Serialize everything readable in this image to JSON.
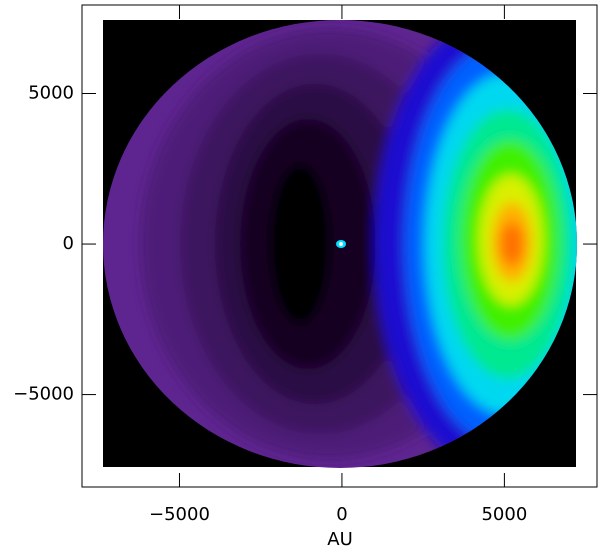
{
  "chart_data": {
    "type": "contour",
    "xlabel": "AU",
    "xlim": [
      -8000,
      7850
    ],
    "ylim": [
      -8070,
      7940
    ],
    "xticks": [
      {
        "value": -5000,
        "label": "−5000"
      },
      0,
      5000
    ],
    "yticks": [
      {
        "value": -5000,
        "label": "−5000"
      },
      0,
      5000
    ]
  }
}
